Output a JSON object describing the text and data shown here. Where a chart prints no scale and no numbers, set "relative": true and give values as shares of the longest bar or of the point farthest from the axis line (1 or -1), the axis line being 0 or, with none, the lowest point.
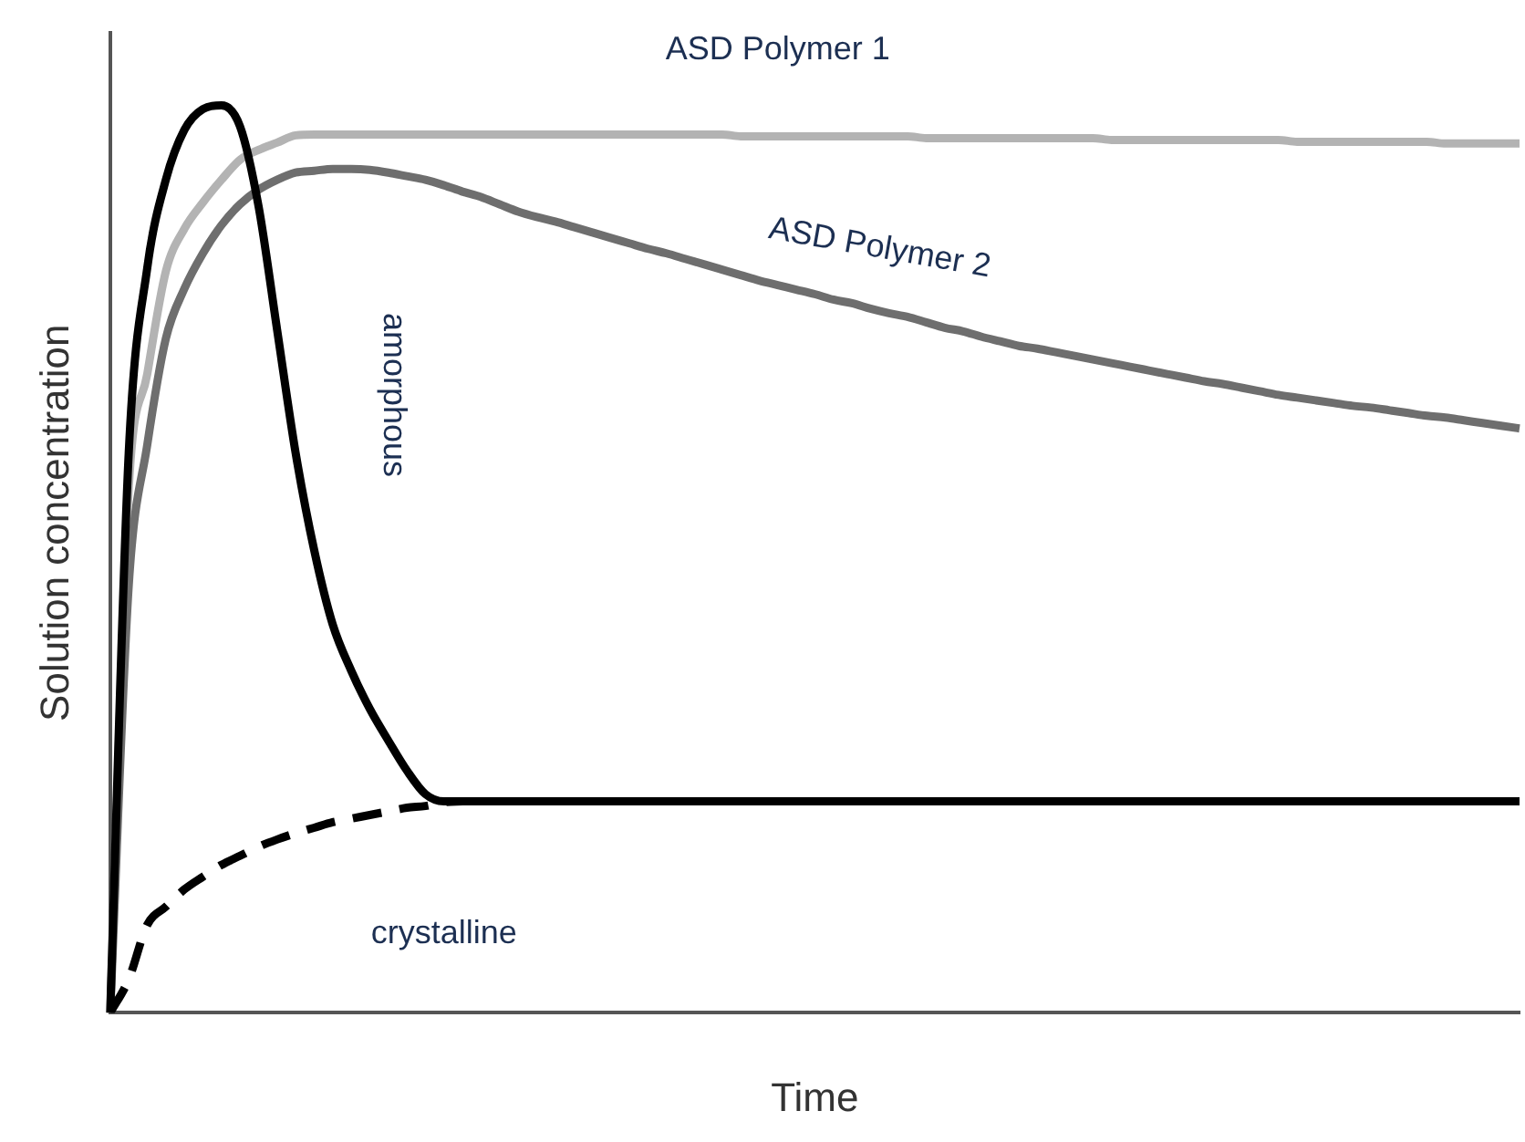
{
  "chart_data": {
    "type": "line",
    "relative": true,
    "xlabel": "Time",
    "ylabel": "Solution concentration",
    "grid": false,
    "legend": false,
    "marker": "none",
    "categories": [
      null,
      null,
      null,
      null,
      null,
      null,
      null,
      null,
      null,
      null,
      null,
      null,
      null,
      null,
      null,
      null,
      null,
      null,
      null,
      null,
      null,
      null,
      null,
      null,
      null,
      null,
      null,
      null,
      null,
      null,
      null,
      null,
      null,
      null,
      null,
      null,
      null,
      null,
      null,
      null,
      null,
      null,
      null,
      null,
      null,
      null,
      null,
      null,
      null,
      null,
      null,
      null,
      null,
      null,
      null,
      null,
      null,
      null,
      null,
      null,
      null,
      null,
      null,
      null,
      null,
      null,
      null,
      null,
      null,
      null,
      null,
      null,
      null,
      null,
      null,
      null,
      null
    ],
    "series": [
      {
        "name": "ASD Polymer 1",
        "color": "#b3b3b3",
        "line_style": "solid",
        "values": [
          0,
          0.578,
          0.704,
          0.817,
          0.864,
          0.893,
          0.918,
          0.94,
          0.951,
          0.959,
          0.967,
          0.968,
          0.968,
          0.968,
          0.968,
          0.968,
          0.968,
          0.968,
          0.968,
          0.968,
          0.968,
          0.968,
          0.968,
          0.968,
          0.968,
          0.968,
          0.968,
          0.968,
          0.968,
          0.968,
          0.968,
          0.968,
          0.968,
          0.968,
          0.966,
          0.966,
          0.966,
          0.966,
          0.966,
          0.966,
          0.966,
          0.966,
          0.966,
          0.966,
          0.964,
          0.964,
          0.964,
          0.964,
          0.964,
          0.964,
          0.964,
          0.964,
          0.964,
          0.964,
          0.962,
          0.962,
          0.962,
          0.962,
          0.962,
          0.962,
          0.962,
          0.962,
          0.962,
          0.962,
          0.96,
          0.96,
          0.96,
          0.96,
          0.96,
          0.96,
          0.96,
          0.96,
          0.958,
          0.958,
          0.958,
          0.958,
          0.958
        ]
      },
      {
        "name": "ASD Polymer 2",
        "color": "#6e6e6e",
        "line_style": "solid",
        "values": [
          0,
          0.471,
          0.626,
          0.743,
          0.798,
          0.837,
          0.868,
          0.891,
          0.907,
          0.918,
          0.926,
          0.928,
          0.93,
          0.93,
          0.929,
          0.926,
          0.922,
          0.918,
          0.912,
          0.905,
          0.899,
          0.891,
          0.883,
          0.877,
          0.872,
          0.866,
          0.86,
          0.854,
          0.848,
          0.842,
          0.837,
          0.831,
          0.825,
          0.819,
          0.813,
          0.807,
          0.802,
          0.797,
          0.792,
          0.786,
          0.782,
          0.776,
          0.771,
          0.767,
          0.761,
          0.755,
          0.751,
          0.745,
          0.74,
          0.735,
          0.732,
          0.728,
          0.724,
          0.72,
          0.716,
          0.712,
          0.708,
          0.704,
          0.7,
          0.696,
          0.693,
          0.689,
          0.685,
          0.681,
          0.678,
          0.675,
          0.672,
          0.669,
          0.667,
          0.664,
          0.661,
          0.658,
          0.656,
          0.653,
          0.65,
          0.647,
          0.644
        ]
      },
      {
        "name": "amorphous",
        "color": "#000000",
        "line_style": "solid",
        "values": [
          0,
          0.617,
          0.821,
          0.918,
          0.973,
          0.996,
          1,
          0.977,
          0.889,
          0.753,
          0.617,
          0.51,
          0.428,
          0.377,
          0.335,
          0.3,
          0.267,
          0.241,
          0.233,
          0.233,
          0.233,
          0.233,
          0.233,
          0.233,
          0.233,
          0.233,
          0.233,
          0.233,
          0.233,
          0.233,
          0.233,
          0.233,
          0.233,
          0.233,
          0.233,
          0.233,
          0.233,
          0.233,
          0.233,
          0.233,
          0.233,
          0.233,
          0.233,
          0.233,
          0.233,
          0.233,
          0.233,
          0.233,
          0.233,
          0.233,
          0.233,
          0.233,
          0.233,
          0.233,
          0.233,
          0.233,
          0.233,
          0.233,
          0.233,
          0.233,
          0.233,
          0.233,
          0.233,
          0.233,
          0.233,
          0.233,
          0.233,
          0.233,
          0.233,
          0.233,
          0.233,
          0.233,
          0.233,
          0.233,
          0.233,
          0.233,
          0.233
        ]
      },
      {
        "name": "crystalline",
        "color": "#000000",
        "line_style": "dashed",
        "values": [
          0,
          0.037,
          0.097,
          0.117,
          0.136,
          0.15,
          0.163,
          0.173,
          0.183,
          0.191,
          0.198,
          0.204,
          0.21,
          0.214,
          0.218,
          0.222,
          0.226,
          0.228,
          0.232,
          0.233,
          null,
          null,
          null,
          null,
          null,
          null,
          null,
          null,
          null,
          null,
          null,
          null,
          null,
          null,
          null,
          null,
          null,
          null,
          null,
          null,
          null,
          null,
          null,
          null,
          null,
          null,
          null,
          null,
          null,
          null,
          null,
          null,
          null,
          null,
          null,
          null,
          null,
          null,
          null,
          null,
          null,
          null,
          null,
          null,
          null,
          null,
          null,
          null,
          null,
          null,
          null,
          null,
          null,
          null,
          null,
          null,
          null
        ]
      }
    ]
  }
}
